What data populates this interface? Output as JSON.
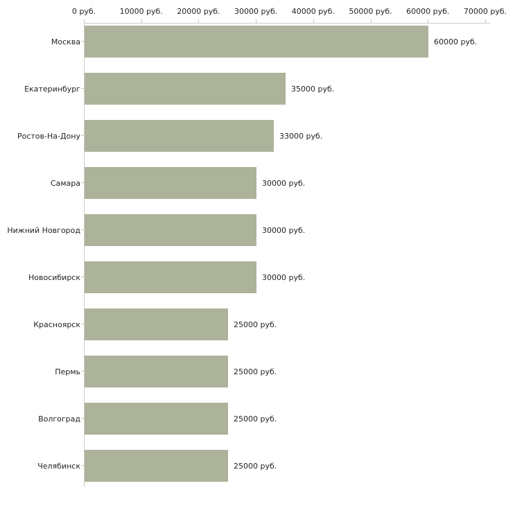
{
  "chart_data": {
    "type": "bar",
    "orientation": "horizontal",
    "title": "",
    "xlabel": "",
    "ylabel": "",
    "grid": false,
    "legend": null,
    "unit": "руб.",
    "categories": [
      "Москва",
      "Екатеринбург",
      "Ростов-На-Дону",
      "Самара",
      "Нижний Новгород",
      "Новосибирск",
      "Красноярск",
      "Пермь",
      "Волгоград",
      "Челябинск"
    ],
    "values": [
      60000,
      35000,
      33000,
      30000,
      30000,
      30000,
      25000,
      25000,
      25000,
      25000
    ],
    "value_labels": [
      "60000 руб.",
      "35000 руб.",
      "33000 руб.",
      "30000 руб.",
      "30000 руб.",
      "30000 руб.",
      "25000 руб.",
      "25000 руб.",
      "25000 руб.",
      "25000 руб."
    ],
    "x_tick_labels": [
      "0 руб.",
      "10000 руб.",
      "20000 руб.",
      "30000 руб.",
      "40000 руб.",
      "50000 руб.",
      "60000 руб.",
      "70000 руб."
    ],
    "x_tick_values": [
      0,
      10000,
      20000,
      30000,
      40000,
      50000,
      60000,
      70000
    ],
    "xlim": [
      0,
      70000
    ],
    "axis_position": "top",
    "colors": {
      "bar_fill": "#adb39a",
      "axis_line": "#cccccc",
      "tick_mark": "#c5c8a3",
      "text": "#222222",
      "background": "#ffffff"
    }
  }
}
